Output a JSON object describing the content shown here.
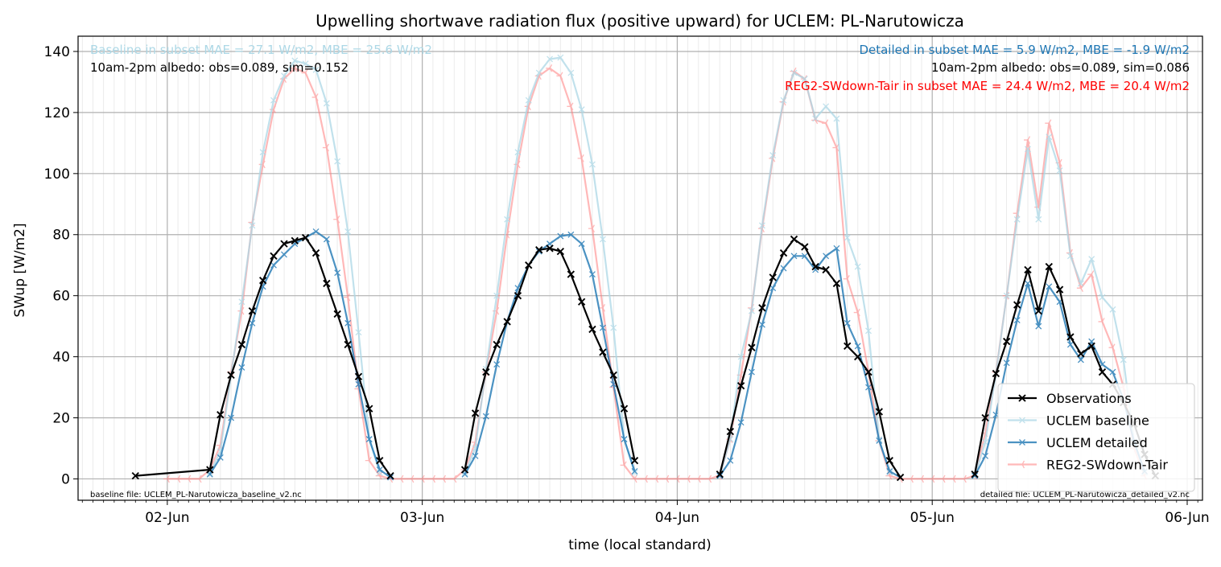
{
  "chart_data": {
    "type": "line",
    "title": "Upwelling shortwave radiation flux (positive upward) for UCLEM: PL-Narutowicza",
    "xlabel": "time (local standard)",
    "ylabel": "SWup [W/m2]",
    "xlim": [
      -0.35,
      4.06
    ],
    "ylim": [
      -7,
      145
    ],
    "grid": true,
    "x_tick_labels": [
      "02-Jun",
      "03-Jun",
      "04-Jun",
      "05-Jun",
      "06-Jun"
    ],
    "y_ticks": [
      0,
      20,
      40,
      60,
      80,
      100,
      120,
      140
    ],
    "legend_position": "lower right",
    "annotations": {
      "baseline_stats": "Baseline in subset MAE = 27.1 W/m2, MBE = 25.6 W/m2",
      "baseline_albedo": "10am-2pm albedo: obs=0.089, sim=0.152",
      "detailed_stats": "Detailed in subset MAE = 5.9 W/m2, MBE = -1.9 W/m2",
      "detailed_albedo": "10am-2pm albedo: obs=0.089, sim=0.086",
      "reg2_stats": "REG2-SWdown-Tair in subset MAE = 24.4 W/m2, MBE = 20.4 W/m2",
      "baseline_file": "baseline file: UCLEM_PL-Narutowicza_baseline_v2.nc",
      "detailed_file": "detailed file: UCLEM_PL-Narutowicza_detailed_v2.nc"
    },
    "colors": {
      "baseline_text": "#add8e6",
      "detailed_text": "#1f77b4",
      "reg2_text": "#ff0000"
    },
    "x_note": "x values are days after 02-Jun 00:00 local standard time",
    "series": [
      {
        "name": "Observations",
        "color": "#000000",
        "marker": "x",
        "points": [
          [
            -0.125,
            1
          ],
          [
            0.167,
            3
          ],
          [
            0.208,
            21
          ],
          [
            0.25,
            34
          ],
          [
            0.292,
            44
          ],
          [
            0.333,
            55
          ],
          [
            0.375,
            65
          ],
          [
            0.417,
            73
          ],
          [
            0.458,
            77
          ],
          [
            0.5,
            78
          ],
          [
            0.542,
            79
          ],
          [
            0.583,
            74
          ],
          [
            0.625,
            64
          ],
          [
            0.667,
            54
          ],
          [
            0.708,
            44
          ],
          [
            0.75,
            33.5
          ],
          [
            0.792,
            23
          ],
          [
            0.833,
            6
          ],
          [
            0.875,
            1
          ],
          null,
          [
            1.167,
            3
          ],
          [
            1.208,
            21.5
          ],
          [
            1.25,
            35
          ],
          [
            1.292,
            44
          ],
          [
            1.333,
            51.5
          ],
          [
            1.375,
            60
          ],
          [
            1.417,
            70
          ],
          [
            1.458,
            75
          ],
          [
            1.5,
            75.5
          ],
          [
            1.542,
            74.5
          ],
          [
            1.583,
            67
          ],
          [
            1.625,
            58
          ],
          [
            1.667,
            49
          ],
          [
            1.708,
            41.5
          ],
          [
            1.75,
            34
          ],
          [
            1.792,
            23
          ],
          [
            1.833,
            6
          ],
          null,
          [
            2.167,
            1.5
          ],
          [
            2.208,
            15.5
          ],
          [
            2.25,
            30.5
          ],
          [
            2.292,
            43
          ],
          [
            2.333,
            56
          ],
          [
            2.375,
            66
          ],
          [
            2.417,
            74
          ],
          [
            2.458,
            78.5
          ],
          [
            2.5,
            76
          ],
          [
            2.542,
            69.5
          ],
          [
            2.583,
            68.5
          ],
          [
            2.625,
            64
          ],
          [
            2.667,
            43.5
          ],
          [
            2.708,
            40
          ],
          [
            2.75,
            35
          ],
          [
            2.792,
            22
          ],
          [
            2.833,
            6
          ],
          [
            2.875,
            0.5
          ],
          null,
          [
            3.167,
            1.5
          ],
          [
            3.208,
            20
          ],
          [
            3.25,
            34.5
          ],
          [
            3.292,
            45
          ],
          [
            3.333,
            57
          ],
          [
            3.375,
            68.5
          ],
          [
            3.417,
            55
          ],
          [
            3.458,
            69.5
          ],
          [
            3.5,
            62
          ],
          [
            3.542,
            46.5
          ],
          [
            3.583,
            41
          ],
          [
            3.625,
            43.5
          ],
          [
            3.667,
            35
          ],
          [
            3.708,
            31
          ],
          [
            3.75,
            25
          ],
          [
            3.792,
            18
          ],
          [
            3.833,
            8
          ],
          [
            3.875,
            1
          ]
        ]
      },
      {
        "name": "UCLEM baseline",
        "color": "#add8e6",
        "marker": "x",
        "points": [
          [
            0.167,
            2
          ],
          [
            0.208,
            9
          ],
          [
            0.25,
            34
          ],
          [
            0.292,
            58
          ],
          [
            0.333,
            83
          ],
          [
            0.375,
            107
          ],
          [
            0.417,
            124
          ],
          [
            0.458,
            132
          ],
          [
            0.5,
            137
          ],
          [
            0.542,
            136
          ],
          [
            0.583,
            134
          ],
          [
            0.625,
            123
          ],
          [
            0.667,
            104
          ],
          [
            0.708,
            81
          ],
          [
            0.75,
            48
          ],
          [
            0.792,
            13
          ],
          [
            0.833,
            2
          ],
          null,
          [
            1.167,
            2
          ],
          [
            1.208,
            10
          ],
          [
            1.25,
            36
          ],
          [
            1.292,
            60
          ],
          [
            1.333,
            85
          ],
          [
            1.375,
            107
          ],
          [
            1.417,
            124
          ],
          [
            1.458,
            133
          ],
          [
            1.5,
            137.5
          ],
          [
            1.542,
            138
          ],
          [
            1.583,
            133
          ],
          [
            1.625,
            121
          ],
          [
            1.667,
            103
          ],
          [
            1.708,
            78.5
          ],
          [
            1.75,
            49.5
          ],
          [
            1.792,
            13
          ],
          [
            1.833,
            2
          ],
          null,
          [
            2.167,
            1
          ],
          [
            2.208,
            13
          ],
          [
            2.25,
            40
          ],
          [
            2.292,
            55
          ],
          [
            2.333,
            83
          ],
          [
            2.375,
            106
          ],
          [
            2.417,
            124
          ],
          [
            2.458,
            133
          ],
          [
            2.5,
            131
          ],
          [
            2.542,
            118
          ],
          [
            2.583,
            122
          ],
          [
            2.625,
            118
          ],
          [
            2.667,
            79
          ],
          [
            2.708,
            69.5
          ],
          [
            2.75,
            48.5
          ],
          [
            2.792,
            13
          ],
          [
            2.833,
            2
          ],
          null,
          [
            3.167,
            1
          ],
          [
            3.208,
            12
          ],
          [
            3.25,
            34.5
          ],
          [
            3.292,
            60
          ],
          [
            3.333,
            85
          ],
          [
            3.375,
            108
          ],
          [
            3.417,
            85
          ],
          [
            3.458,
            112
          ],
          [
            3.5,
            101
          ],
          [
            3.542,
            73
          ],
          [
            3.583,
            64
          ],
          [
            3.625,
            72
          ],
          [
            3.667,
            59.5
          ],
          [
            3.708,
            55.5
          ],
          [
            3.75,
            39
          ],
          [
            3.792,
            12
          ],
          [
            3.833,
            2
          ]
        ]
      },
      {
        "name": "UCLEM detailed",
        "color": "#1f77b4",
        "marker": "x",
        "points": [
          [
            0.167,
            1.5
          ],
          [
            0.208,
            7
          ],
          [
            0.25,
            20
          ],
          [
            0.292,
            36.5
          ],
          [
            0.333,
            51
          ],
          [
            0.375,
            63
          ],
          [
            0.417,
            70
          ],
          [
            0.458,
            73.5
          ],
          [
            0.5,
            77
          ],
          [
            0.542,
            79
          ],
          [
            0.583,
            81
          ],
          [
            0.625,
            78.5
          ],
          [
            0.667,
            67.5
          ],
          [
            0.708,
            51
          ],
          [
            0.75,
            31
          ],
          [
            0.792,
            13
          ],
          [
            0.833,
            3
          ],
          [
            0.875,
            0.5
          ],
          null,
          [
            1.167,
            1.5
          ],
          [
            1.208,
            7.5
          ],
          [
            1.25,
            20.5
          ],
          [
            1.292,
            37.5
          ],
          [
            1.333,
            51.5
          ],
          [
            1.375,
            62.5
          ],
          [
            1.417,
            70
          ],
          [
            1.458,
            74.5
          ],
          [
            1.5,
            77
          ],
          [
            1.542,
            79.5
          ],
          [
            1.583,
            80
          ],
          [
            1.625,
            77
          ],
          [
            1.667,
            67
          ],
          [
            1.708,
            49.5
          ],
          [
            1.75,
            31
          ],
          [
            1.792,
            13
          ],
          [
            1.833,
            2.5
          ],
          null,
          [
            2.167,
            1
          ],
          [
            2.208,
            6
          ],
          [
            2.25,
            18.5
          ],
          [
            2.292,
            35
          ],
          [
            2.333,
            50.5
          ],
          [
            2.375,
            62.5
          ],
          [
            2.417,
            69
          ],
          [
            2.458,
            73
          ],
          [
            2.5,
            73
          ],
          [
            2.542,
            68.5
          ],
          [
            2.583,
            73
          ],
          [
            2.625,
            75.5
          ],
          [
            2.667,
            51
          ],
          [
            2.708,
            43.5
          ],
          [
            2.75,
            30
          ],
          [
            2.792,
            12.5
          ],
          [
            2.833,
            2.5
          ],
          [
            2.875,
            0.5
          ],
          null,
          [
            3.167,
            1
          ],
          [
            3.208,
            7.5
          ],
          [
            3.25,
            21
          ],
          [
            3.292,
            38
          ],
          [
            3.333,
            52
          ],
          [
            3.375,
            64
          ],
          [
            3.417,
            50
          ],
          [
            3.458,
            63
          ],
          [
            3.5,
            58
          ],
          [
            3.542,
            44
          ],
          [
            3.583,
            39
          ],
          [
            3.625,
            45
          ],
          [
            3.667,
            37.5
          ],
          [
            3.708,
            35
          ],
          [
            3.75,
            26
          ],
          [
            3.792,
            12
          ],
          [
            3.833,
            2.5
          ]
        ]
      },
      {
        "name": "REG2-SWdown-Tair",
        "color": "#ff7f7f",
        "marker": "tri_left",
        "points": [
          [
            0,
            0
          ],
          [
            0.042,
            0
          ],
          [
            0.083,
            0
          ],
          [
            0.125,
            0
          ],
          [
            0.167,
            3
          ],
          [
            0.208,
            11
          ],
          [
            0.25,
            35
          ],
          [
            0.292,
            55
          ],
          [
            0.333,
            84
          ],
          [
            0.375,
            103
          ],
          [
            0.417,
            121
          ],
          [
            0.458,
            131
          ],
          [
            0.5,
            134.5
          ],
          [
            0.542,
            133
          ],
          [
            0.583,
            125
          ],
          [
            0.625,
            108.5
          ],
          [
            0.667,
            85
          ],
          [
            0.708,
            59.5
          ],
          [
            0.75,
            29.5
          ],
          [
            0.792,
            6
          ],
          [
            0.833,
            1
          ],
          [
            0.875,
            0
          ],
          [
            0.917,
            0
          ],
          [
            0.958,
            0
          ],
          [
            1.0,
            0
          ],
          [
            1.042,
            0
          ],
          [
            1.083,
            0
          ],
          [
            1.125,
            0
          ],
          [
            1.167,
            3
          ],
          [
            1.208,
            12
          ],
          [
            1.25,
            35
          ],
          [
            1.292,
            55
          ],
          [
            1.333,
            80
          ],
          [
            1.375,
            103
          ],
          [
            1.417,
            122
          ],
          [
            1.458,
            132
          ],
          [
            1.5,
            134.5
          ],
          [
            1.542,
            132
          ],
          [
            1.583,
            122
          ],
          [
            1.625,
            105
          ],
          [
            1.667,
            82
          ],
          [
            1.708,
            56
          ],
          [
            1.75,
            30
          ],
          [
            1.792,
            4.5
          ],
          [
            1.833,
            0
          ],
          [
            1.875,
            0
          ],
          [
            1.917,
            0
          ],
          [
            1.958,
            0
          ],
          [
            2.0,
            0
          ],
          [
            2.042,
            0
          ],
          [
            2.083,
            0
          ],
          [
            2.125,
            0
          ],
          [
            2.167,
            1
          ],
          [
            2.208,
            13
          ],
          [
            2.25,
            34
          ],
          [
            2.292,
            56
          ],
          [
            2.333,
            82
          ],
          [
            2.375,
            105
          ],
          [
            2.417,
            123.5
          ],
          [
            2.458,
            133.5
          ],
          [
            2.5,
            131
          ],
          [
            2.542,
            117.5
          ],
          [
            2.583,
            116.5
          ],
          [
            2.625,
            108.5
          ],
          [
            2.667,
            65.5
          ],
          [
            2.708,
            54.5
          ],
          [
            2.75,
            35
          ],
          [
            2.792,
            12.5
          ],
          [
            2.833,
            1
          ],
          [
            2.875,
            0
          ],
          [
            2.917,
            0
          ],
          [
            2.958,
            0
          ],
          [
            3.0,
            0
          ],
          [
            3.042,
            0
          ],
          [
            3.083,
            0
          ],
          [
            3.125,
            0
          ],
          [
            3.167,
            1
          ],
          [
            3.208,
            15
          ],
          [
            3.25,
            35
          ],
          [
            3.292,
            60
          ],
          [
            3.333,
            87
          ],
          [
            3.375,
            111
          ],
          [
            3.417,
            89
          ],
          [
            3.458,
            116.5
          ],
          [
            3.5,
            103.5
          ],
          [
            3.542,
            74
          ],
          [
            3.583,
            62.5
          ],
          [
            3.625,
            67
          ],
          [
            3.667,
            51.5
          ],
          [
            3.708,
            43
          ],
          [
            3.75,
            30
          ],
          [
            3.792,
            10
          ],
          [
            3.833,
            1
          ]
        ]
      }
    ]
  }
}
